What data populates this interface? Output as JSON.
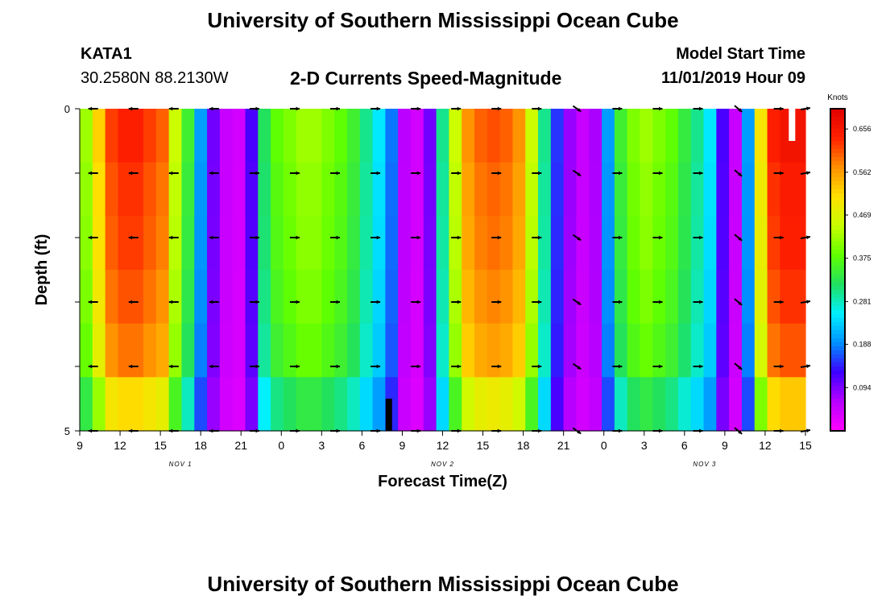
{
  "page": {
    "title": "University of Southern Mississippi Ocean Cube",
    "footer_title": "University of Southern Mississippi Ocean Cube"
  },
  "station": {
    "id": "KATA1",
    "coords": "30.2580N 88.2130W"
  },
  "model": {
    "start_label": "Model Start Time",
    "start_value": "11/01/2019 Hour 09"
  },
  "chart_data": {
    "type": "heatmap",
    "title": "2-D Currents Speed-Magnitude",
    "xlabel": "Forecast Time(Z)",
    "ylabel": "Depth (ft)",
    "ylim": [
      0,
      5
    ],
    "y_ticks": [
      "0",
      "5"
    ],
    "x_tick_labels": [
      "9",
      "12",
      "15",
      "18",
      "21",
      "0",
      "3",
      "6",
      "9",
      "12",
      "15",
      "18",
      "21",
      "0",
      "3",
      "6",
      "9",
      "12",
      "15"
    ],
    "x_hours": [
      0,
      54
    ],
    "date_labels": [
      {
        "label": "NOV 1",
        "hour": 7.5
      },
      {
        "label": "NOV 2",
        "hour": 27
      },
      {
        "label": "NOV 3",
        "hour": 46.5
      }
    ],
    "colorbar": {
      "unit": "Knots",
      "min": 0,
      "max": 0.7,
      "ticks": [
        "0.656",
        "0.562",
        "0.469",
        "0.375",
        "0.281",
        "0.188",
        "0.094"
      ],
      "tick_values": [
        0.656,
        0.562,
        0.469,
        0.375,
        0.281,
        0.188,
        0.094
      ],
      "colors": [
        "#ff00ff",
        "#b800ff",
        "#3c00ff",
        "#0090ff",
        "#00f0ff",
        "#20e060",
        "#60ff00",
        "#c8ff00",
        "#ffe000",
        "#ff9000",
        "#ff2000",
        "#e00000"
      ]
    },
    "column_speed": [
      0.42,
      0.52,
      0.62,
      0.64,
      0.64,
      0.62,
      0.6,
      0.45,
      0.35,
      0.2,
      0.1,
      0.05,
      0.04,
      0.12,
      0.32,
      0.38,
      0.4,
      0.42,
      0.42,
      0.4,
      0.38,
      0.35,
      0.3,
      0.25,
      0.18,
      0.06,
      0.04,
      0.1,
      0.3,
      0.45,
      0.57,
      0.6,
      0.61,
      0.6,
      0.57,
      0.45,
      0.3,
      0.15,
      0.08,
      0.05,
      0.07,
      0.2,
      0.35,
      0.4,
      0.42,
      0.4,
      0.38,
      0.34,
      0.3,
      0.25,
      0.12,
      0.05,
      0.2,
      0.5,
      0.64,
      0.66,
      0.66
    ],
    "depth_factor": [
      1.0,
      0.98,
      0.97,
      0.95,
      0.92,
      0.8
    ],
    "arrows": {
      "hours": [
        1,
        4,
        7,
        10,
        13,
        16,
        19,
        22,
        25,
        28,
        31,
        34,
        37,
        40,
        43,
        46,
        49,
        52,
        54
      ],
      "directions": [
        180,
        180,
        180,
        180,
        0,
        0,
        0,
        0,
        0,
        0,
        0,
        0,
        -35,
        0,
        0,
        0,
        -40,
        0,
        10
      ],
      "depth_rows": 6
    },
    "markers": [
      {
        "kind": "white-bar",
        "hour": 53,
        "depth_start": 0,
        "depth_end": 0.5
      },
      {
        "kind": "black-bar",
        "hour": 23,
        "depth_start": 4.5,
        "depth_end": 5
      }
    ]
  }
}
